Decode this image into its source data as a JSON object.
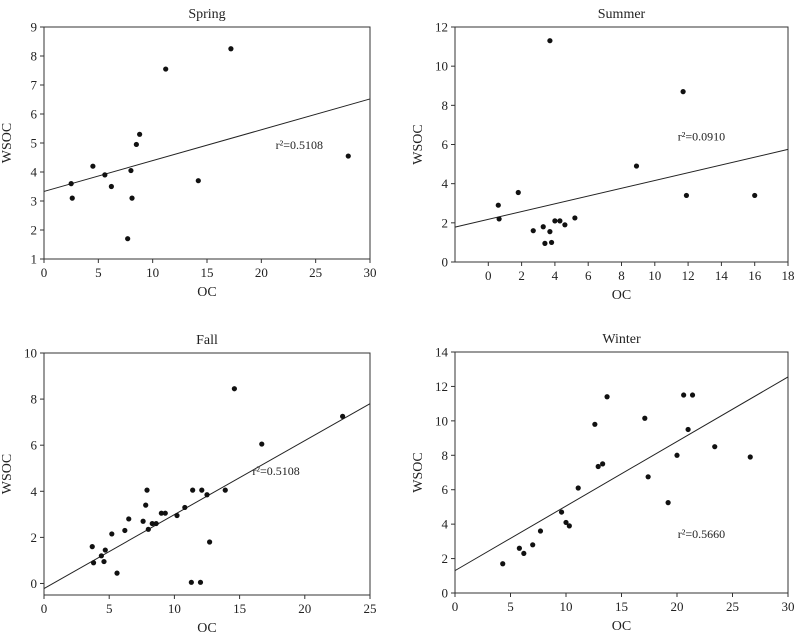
{
  "chart_data": [
    {
      "type": "scatter",
      "title": "Spring",
      "xlabel": "OC",
      "ylabel": "WSOC",
      "xlim": [
        0,
        30
      ],
      "ylim": [
        1,
        9
      ],
      "xticks": [
        0,
        5,
        10,
        15,
        20,
        25,
        30
      ],
      "yticks": [
        1,
        2,
        3,
        4,
        5,
        6,
        7,
        8,
        9
      ],
      "points": [
        [
          2.5,
          3.6
        ],
        [
          2.6,
          3.1
        ],
        [
          4.5,
          4.2
        ],
        [
          5.6,
          3.9
        ],
        [
          6.2,
          3.5
        ],
        [
          7.7,
          1.7
        ],
        [
          8.0,
          4.05
        ],
        [
          8.1,
          3.1
        ],
        [
          8.5,
          4.95
        ],
        [
          8.8,
          5.3
        ],
        [
          11.2,
          7.55
        ],
        [
          14.2,
          3.7
        ],
        [
          17.2,
          8.25
        ],
        [
          28.0,
          4.55
        ]
      ],
      "fit": {
        "x": [
          0,
          30
        ],
        "y": [
          3.33,
          6.52
        ]
      },
      "r2_text": "r²=0.5108",
      "r2_pos": [
        23.5,
        4.8
      ]
    },
    {
      "type": "scatter",
      "title": "Summer",
      "xlabel": "OC",
      "ylabel": "WSOC",
      "xlim": [
        -2,
        18
      ],
      "ylim": [
        0,
        12
      ],
      "xticks": [
        0,
        2,
        4,
        6,
        8,
        10,
        12,
        14,
        16,
        18
      ],
      "yticks": [
        0,
        2,
        4,
        6,
        8,
        10,
        12
      ],
      "points": [
        [
          0.6,
          2.9
        ],
        [
          0.65,
          2.2
        ],
        [
          1.8,
          3.55
        ],
        [
          2.7,
          1.6
        ],
        [
          3.3,
          1.8
        ],
        [
          3.4,
          0.95
        ],
        [
          3.7,
          11.3
        ],
        [
          3.7,
          1.55
        ],
        [
          3.8,
          1.0
        ],
        [
          4.0,
          2.1
        ],
        [
          4.3,
          2.1
        ],
        [
          4.6,
          1.9
        ],
        [
          5.2,
          2.25
        ],
        [
          8.9,
          4.9
        ],
        [
          11.7,
          8.7
        ],
        [
          11.9,
          3.4
        ],
        [
          16.0,
          3.4
        ]
      ],
      "fit": {
        "x": [
          -2,
          18
        ],
        "y": [
          1.78,
          5.75
        ]
      },
      "r2_text": "r²=0.0910",
      "r2_pos": [
        12.8,
        6.2
      ]
    },
    {
      "type": "scatter",
      "title": "Fall",
      "xlabel": "OC",
      "ylabel": "WSOC",
      "xlim": [
        0,
        25
      ],
      "ylim": [
        -0.5,
        10
      ],
      "xticks": [
        0,
        5,
        10,
        15,
        20,
        25
      ],
      "yticks": [
        0,
        2,
        4,
        6,
        8,
        10
      ],
      "points": [
        [
          3.7,
          1.6
        ],
        [
          3.8,
          0.9
        ],
        [
          4.4,
          1.2
        ],
        [
          4.6,
          0.95
        ],
        [
          4.7,
          1.45
        ],
        [
          5.2,
          2.15
        ],
        [
          5.6,
          0.45
        ],
        [
          6.2,
          2.3
        ],
        [
          6.5,
          2.8
        ],
        [
          7.6,
          2.7
        ],
        [
          7.8,
          3.4
        ],
        [
          7.9,
          4.05
        ],
        [
          8.0,
          2.35
        ],
        [
          8.3,
          2.6
        ],
        [
          8.6,
          2.6
        ],
        [
          9.0,
          3.05
        ],
        [
          9.3,
          3.05
        ],
        [
          10.2,
          2.95
        ],
        [
          10.8,
          3.3
        ],
        [
          11.3,
          0.05
        ],
        [
          11.4,
          4.05
        ],
        [
          12.0,
          0.05
        ],
        [
          12.1,
          4.05
        ],
        [
          12.5,
          3.85
        ],
        [
          12.7,
          1.8
        ],
        [
          13.9,
          4.05
        ],
        [
          14.6,
          8.45
        ],
        [
          16.7,
          6.05
        ],
        [
          22.9,
          7.25
        ]
      ],
      "fit": {
        "x": [
          0,
          25
        ],
        "y": [
          -0.22,
          7.8
        ]
      },
      "r2_text": "r²=0.5108",
      "r2_pos": [
        17.8,
        4.7
      ]
    },
    {
      "type": "scatter",
      "title": "Winter",
      "xlabel": "OC",
      "ylabel": "WSOC",
      "xlim": [
        0,
        30
      ],
      "ylim": [
        0,
        14
      ],
      "xticks": [
        0,
        5,
        10,
        15,
        20,
        25,
        30
      ],
      "yticks": [
        0,
        2,
        4,
        6,
        8,
        10,
        12,
        14
      ],
      "points": [
        [
          4.3,
          1.7
        ],
        [
          5.8,
          2.6
        ],
        [
          6.2,
          2.3
        ],
        [
          7.0,
          2.8
        ],
        [
          7.7,
          3.6
        ],
        [
          9.6,
          4.7
        ],
        [
          10.0,
          4.1
        ],
        [
          10.3,
          3.9
        ],
        [
          11.1,
          6.1
        ],
        [
          12.6,
          9.8
        ],
        [
          12.9,
          7.35
        ],
        [
          13.3,
          7.5
        ],
        [
          13.7,
          11.4
        ],
        [
          17.1,
          10.15
        ],
        [
          17.4,
          6.75
        ],
        [
          19.2,
          5.25
        ],
        [
          20.0,
          8.0
        ],
        [
          20.6,
          11.5
        ],
        [
          21.0,
          9.5
        ],
        [
          21.4,
          11.5
        ],
        [
          23.4,
          8.5
        ],
        [
          26.6,
          7.9
        ]
      ],
      "fit": {
        "x": [
          0,
          30
        ],
        "y": [
          1.3,
          12.55
        ]
      },
      "r2_text": "r²=0.5660",
      "r2_pos": [
        22.2,
        3.2
      ]
    }
  ]
}
